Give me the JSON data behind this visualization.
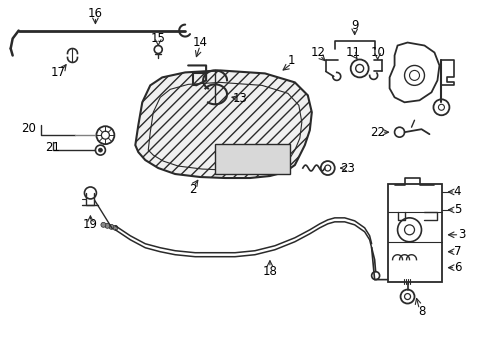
{
  "background_color": "#ffffff",
  "line_color": "#2a2a2a",
  "label_fontsize": 8.5,
  "fig_w": 4.89,
  "fig_h": 3.6,
  "dpi": 100
}
